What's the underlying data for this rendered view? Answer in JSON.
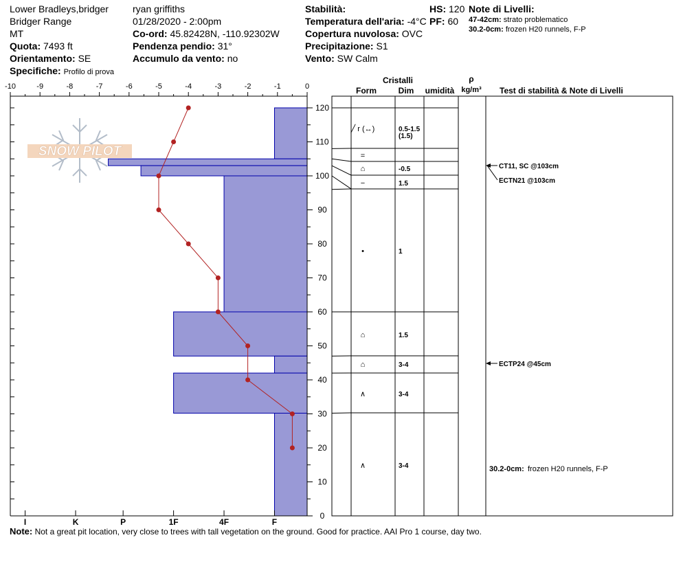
{
  "header": {
    "location": "Lower Bradleys,bridger",
    "range": "Bridger Range",
    "state": "MT",
    "elevation_label": "Quota:",
    "elevation": "7493 ft",
    "aspect_label": "Orientamento:",
    "aspect": "SE",
    "specifics_label": "Specifiche:",
    "specifics": "Profilo di prova",
    "observer": "ryan griffiths",
    "datetime": "01/28/2020 - 2:00pm",
    "coord_label": "Co-ord:",
    "coord": "45.82428N, -110.92302W",
    "slope_label": "Pendenza pendio:",
    "slope": "31°",
    "wind_load_label": "Accumulo da vento:",
    "wind_load": "no",
    "stability_label": "Stabilità:",
    "stability": "",
    "air_temp_label": "Temperatura dell'aria:",
    "air_temp": "-4°C",
    "cloud_label": "Copertura nuvolosa:",
    "cloud": "OVC",
    "precip_label": "Precipitazione:",
    "precip": "S1",
    "wind_label": "Vento:",
    "wind": "SW Calm",
    "hs_label": "HS:",
    "hs": "120",
    "pf_label": "PF:",
    "pf": "60",
    "layer_notes_title": "Note di Livelli:",
    "layer_notes": [
      {
        "range": "47-42cm:",
        "text": "strato problematico"
      },
      {
        "range": "30.2-0cm:",
        "text": "frozen H20 runnels, F-P"
      }
    ]
  },
  "columns": {
    "crystals": "Cristalli",
    "form": "Form",
    "size": "Dim",
    "moisture": "umidità",
    "rho": "ρ",
    "density_unit": "kg/m³",
    "stability_notes": "Test di stabilità & Note di Livelli"
  },
  "footer": {
    "label": "Note:",
    "text": "Not a great pit location, very close to trees with tall vegetation on the ground. Good for practice. AAI Pro 1 course, day two."
  },
  "logo": {
    "text": "SNOW PILOT"
  },
  "colors": {
    "hardness_fill": "#9999d6",
    "hardness_stroke": "#0000aa",
    "temp_line": "#b22222"
  },
  "chart_data": {
    "type": "bar",
    "temp_axis": {
      "ticks": [
        -10,
        -9,
        -8,
        -7,
        -6,
        -5,
        -4,
        -3,
        -2,
        -1,
        0
      ],
      "range": [
        -10,
        0
      ]
    },
    "hardness_axis": {
      "labels": [
        "I",
        "K",
        "P",
        "1F",
        "4F",
        "F"
      ],
      "positions": [
        -9.5,
        -7.8,
        -6.2,
        -4.5,
        -2.8,
        -1.1
      ]
    },
    "depth_axis": {
      "ticks": [
        0,
        10,
        20,
        30,
        40,
        50,
        60,
        70,
        80,
        90,
        100,
        110,
        120
      ],
      "range": [
        0,
        120
      ]
    },
    "hardness_layers": [
      {
        "top": 120,
        "bottom": 105,
        "temp_extent": -1.1
      },
      {
        "top": 105,
        "bottom": 103,
        "temp_extent": -6.7
      },
      {
        "top": 103,
        "bottom": 100,
        "temp_extent": -5.6
      },
      {
        "top": 100,
        "bottom": 60,
        "temp_extent": -2.8
      },
      {
        "top": 60,
        "bottom": 47,
        "temp_extent": -4.5
      },
      {
        "top": 47,
        "bottom": 42,
        "temp_extent": -1.1
      },
      {
        "top": 42,
        "bottom": 30.2,
        "temp_extent": -4.5
      },
      {
        "top": 30.2,
        "bottom": 0,
        "temp_extent": -1.1
      }
    ],
    "temperature_profile": [
      {
        "depth": 120,
        "temp": -4
      },
      {
        "depth": 110,
        "temp": -4.5
      },
      {
        "depth": 100,
        "temp": -5
      },
      {
        "depth": 90,
        "temp": -5
      },
      {
        "depth": 80,
        "temp": -4
      },
      {
        "depth": 70,
        "temp": -3
      },
      {
        "depth": 60,
        "temp": -3
      },
      {
        "depth": 50,
        "temp": -2
      },
      {
        "depth": 40,
        "temp": -2
      },
      {
        "depth": 30,
        "temp": -0.5
      },
      {
        "depth": 20,
        "temp": -0.5
      }
    ],
    "layer_boundaries": [
      120,
      108,
      105,
      103,
      100,
      96,
      60,
      47,
      42,
      30.2,
      0
    ],
    "crystal_rows": [
      {
        "depth": 114,
        "form": "╱ r (↔)",
        "size": "0.5-1.5",
        "size2": "(1.5)"
      },
      {
        "depth": 106,
        "form": "=",
        "size": "",
        "size2": ""
      },
      {
        "depth": 102,
        "form": "⌂",
        "size": "-0.5",
        "size2": ""
      },
      {
        "depth": 98,
        "form": "−",
        "size": "1.5",
        "size2": ""
      },
      {
        "depth": 78,
        "form": "•",
        "size": "1",
        "size2": ""
      },
      {
        "depth": 53,
        "form": "⌂",
        "size": "1.5",
        "size2": ""
      },
      {
        "depth": 44.5,
        "form": "⌂",
        "size": "3-4",
        "size2": ""
      },
      {
        "depth": 36,
        "form": "∧",
        "size": "3-4",
        "size2": ""
      },
      {
        "depth": 15,
        "form": "∧",
        "size": "3-4",
        "size2": ""
      }
    ],
    "stability_tests": [
      {
        "depth": 103,
        "text": "CT11, SC @103cm"
      },
      {
        "depth": 103,
        "text": "ECTN21 @103cm"
      },
      {
        "depth": 45,
        "text": "ECTP24 @45cm"
      }
    ],
    "layer_note_rows": [
      {
        "depth": 14,
        "label": "30.2-0cm:",
        "text": "frozen H20 runnels, F-P"
      }
    ]
  }
}
